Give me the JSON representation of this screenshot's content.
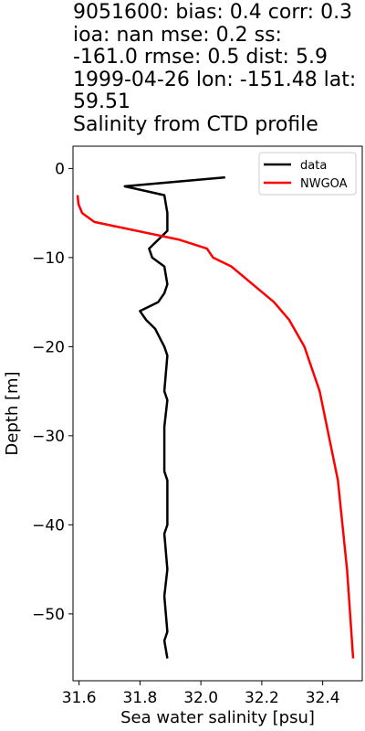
{
  "chart_data": {
    "type": "line",
    "title_lines": [
      "9051600: bias: 0.4  corr: 0.3",
      " ioa: nan  mse: 0.2  ss:",
      "-161.0  rmse: 0.5  dist: 5.9",
      "1999-04-26 lon: -151.48 lat:",
      "59.51",
      "Salinity from CTD profile"
    ],
    "xlabel": "Sea water salinity [psu]",
    "ylabel": "Depth [m]",
    "xlim": [
      31.58,
      32.53
    ],
    "ylim": [
      -57.5,
      2.5
    ],
    "xticks": [
      31.6,
      31.8,
      32.0,
      32.2,
      32.4
    ],
    "xtick_labels": [
      "31.6",
      "31.8",
      "32.0",
      "32.2",
      "32.4"
    ],
    "yticks": [
      0,
      -10,
      -20,
      -30,
      -40,
      -50
    ],
    "ytick_labels": [
      "0",
      "−10",
      "−20",
      "−30",
      "−40",
      "−50"
    ],
    "legend_position": "top-right",
    "grid": false,
    "series": [
      {
        "name": "data",
        "color": "#000000",
        "points": [
          [
            32.08,
            -1
          ],
          [
            31.75,
            -2
          ],
          [
            31.88,
            -3
          ],
          [
            31.89,
            -5
          ],
          [
            31.89,
            -7
          ],
          [
            31.86,
            -8
          ],
          [
            31.83,
            -9
          ],
          [
            31.84,
            -10
          ],
          [
            31.86,
            -10.5
          ],
          [
            31.88,
            -11
          ],
          [
            31.89,
            -13
          ],
          [
            31.88,
            -14
          ],
          [
            31.86,
            -15
          ],
          [
            31.8,
            -16
          ],
          [
            31.82,
            -17
          ],
          [
            31.85,
            -18
          ],
          [
            31.88,
            -20
          ],
          [
            31.89,
            -21
          ],
          [
            31.88,
            -25
          ],
          [
            31.89,
            -26
          ],
          [
            31.88,
            -29
          ],
          [
            31.88,
            -34
          ],
          [
            31.89,
            -35
          ],
          [
            31.89,
            -40
          ],
          [
            31.88,
            -41
          ],
          [
            31.89,
            -45
          ],
          [
            31.88,
            -48
          ],
          [
            31.89,
            -52
          ],
          [
            31.88,
            -53
          ],
          [
            31.89,
            -55
          ]
        ]
      },
      {
        "name": "NWGOA",
        "color": "#ff0000",
        "points": [
          [
            31.595,
            -3
          ],
          [
            31.598,
            -4
          ],
          [
            31.61,
            -5
          ],
          [
            31.65,
            -6
          ],
          [
            31.93,
            -8
          ],
          [
            32.02,
            -9
          ],
          [
            32.04,
            -10
          ],
          [
            32.1,
            -11
          ],
          [
            32.24,
            -15
          ],
          [
            32.29,
            -17
          ],
          [
            32.34,
            -20
          ],
          [
            32.39,
            -25
          ],
          [
            32.42,
            -30
          ],
          [
            32.45,
            -35
          ],
          [
            32.465,
            -40
          ],
          [
            32.48,
            -45
          ],
          [
            32.49,
            -50
          ],
          [
            32.5,
            -55
          ]
        ]
      }
    ]
  }
}
